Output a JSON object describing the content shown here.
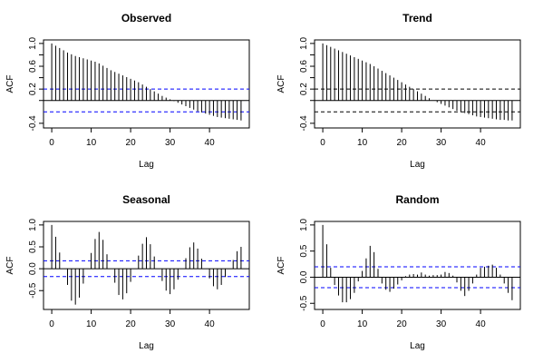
{
  "chart_data": [
    {
      "type": "bar",
      "title": "Observed",
      "xlabel": "Lag",
      "ylabel": "ACF",
      "xlim": [
        0,
        48
      ],
      "ylim": [
        -0.42,
        1.0
      ],
      "xticks": [
        0,
        10,
        20,
        30,
        40
      ],
      "yticks": [
        -0.4,
        0.0,
        0.2,
        0.4,
        0.6,
        0.8,
        1.0
      ],
      "ytick_labels": [
        "-0.4",
        "",
        "0.2",
        "",
        "0.6",
        "",
        "1.0"
      ],
      "ci": 0.2,
      "ci_color": "#0000ff",
      "x": [
        0,
        1,
        2,
        3,
        4,
        5,
        6,
        7,
        8,
        9,
        10,
        11,
        12,
        13,
        14,
        15,
        16,
        17,
        18,
        19,
        20,
        21,
        22,
        23,
        24,
        25,
        26,
        27,
        28,
        29,
        30,
        31,
        32,
        33,
        34,
        35,
        36,
        37,
        38,
        39,
        40,
        41,
        42,
        43,
        44,
        45,
        46,
        47,
        48
      ],
      "values": [
        1.0,
        0.96,
        0.92,
        0.88,
        0.84,
        0.81,
        0.78,
        0.76,
        0.74,
        0.72,
        0.7,
        0.68,
        0.65,
        0.61,
        0.57,
        0.53,
        0.5,
        0.47,
        0.44,
        0.41,
        0.38,
        0.35,
        0.32,
        0.28,
        0.24,
        0.2,
        0.16,
        0.12,
        0.08,
        0.05,
        0.02,
        -0.01,
        -0.04,
        -0.07,
        -0.1,
        -0.13,
        -0.16,
        -0.19,
        -0.21,
        -0.23,
        -0.25,
        -0.27,
        -0.29,
        -0.3,
        -0.31,
        -0.32,
        -0.33,
        -0.34,
        -0.35
      ]
    },
    {
      "type": "bar",
      "title": "Trend",
      "xlabel": "Lag",
      "ylabel": "ACF",
      "xlim": [
        0,
        48
      ],
      "ylim": [
        -0.42,
        1.0
      ],
      "xticks": [
        0,
        10,
        20,
        30,
        40
      ],
      "yticks": [
        -0.4,
        0.0,
        0.2,
        0.4,
        0.6,
        0.8,
        1.0
      ],
      "ytick_labels": [
        "-0.4",
        "",
        "0.2",
        "",
        "0.6",
        "",
        "1.0"
      ],
      "ci": 0.2,
      "ci_color": "#000000",
      "x": [
        0,
        1,
        2,
        3,
        4,
        5,
        6,
        7,
        8,
        9,
        10,
        11,
        12,
        13,
        14,
        15,
        16,
        17,
        18,
        19,
        20,
        21,
        22,
        23,
        24,
        25,
        26,
        27,
        28,
        29,
        30,
        31,
        32,
        33,
        34,
        35,
        36,
        37,
        38,
        39,
        40,
        41,
        42,
        43,
        44,
        45,
        46,
        47,
        48
      ],
      "values": [
        1.0,
        0.97,
        0.94,
        0.91,
        0.88,
        0.85,
        0.82,
        0.79,
        0.76,
        0.73,
        0.7,
        0.67,
        0.64,
        0.6,
        0.56,
        0.52,
        0.48,
        0.44,
        0.4,
        0.36,
        0.32,
        0.28,
        0.24,
        0.2,
        0.16,
        0.12,
        0.08,
        0.04,
        0.0,
        -0.03,
        -0.06,
        -0.09,
        -0.12,
        -0.15,
        -0.18,
        -0.2,
        -0.22,
        -0.24,
        -0.26,
        -0.28,
        -0.29,
        -0.3,
        -0.31,
        -0.32,
        -0.33,
        -0.34,
        -0.34,
        -0.35,
        -0.35
      ]
    },
    {
      "type": "bar",
      "title": "Seasonal",
      "xlabel": "Lag",
      "ylabel": "ACF",
      "xlim": [
        0,
        48
      ],
      "ylim": [
        -0.85,
        1.0
      ],
      "xticks": [
        0,
        10,
        20,
        30,
        40
      ],
      "yticks": [
        -0.5,
        0.0,
        0.5,
        1.0
      ],
      "ytick_labels": [
        "-0.5",
        "0.0",
        "0.5",
        "1.0"
      ],
      "ci": 0.18,
      "ci_color": "#0000ff",
      "x": [
        0,
        1,
        2,
        3,
        4,
        5,
        6,
        7,
        8,
        9,
        10,
        11,
        12,
        13,
        14,
        15,
        16,
        17,
        18,
        19,
        20,
        21,
        22,
        23,
        24,
        25,
        26,
        27,
        28,
        29,
        30,
        31,
        32,
        33,
        34,
        35,
        36,
        37,
        38,
        39,
        40,
        41,
        42,
        43,
        44,
        45,
        46,
        47,
        48
      ],
      "values": [
        1.0,
        0.73,
        0.37,
        0.0,
        -0.37,
        -0.73,
        -0.82,
        -0.66,
        -0.34,
        0.0,
        0.36,
        0.68,
        0.84,
        0.66,
        0.33,
        0.0,
        -0.32,
        -0.6,
        -0.7,
        -0.56,
        -0.3,
        0.0,
        0.3,
        0.57,
        0.72,
        0.56,
        0.28,
        0.0,
        -0.28,
        -0.5,
        -0.58,
        -0.47,
        -0.25,
        0.0,
        0.24,
        0.49,
        0.6,
        0.46,
        0.23,
        0.0,
        -0.22,
        -0.4,
        -0.47,
        -0.37,
        -0.19,
        0.0,
        0.2,
        0.4,
        0.5
      ]
    },
    {
      "type": "bar",
      "title": "Random",
      "xlabel": "Lag",
      "ylabel": "ACF",
      "xlim": [
        0,
        48
      ],
      "ylim": [
        -0.55,
        1.0
      ],
      "xticks": [
        0,
        10,
        20,
        30,
        40
      ],
      "yticks": [
        -0.5,
        0.0,
        0.5,
        1.0
      ],
      "ytick_labels": [
        "-0.5",
        "0.0",
        "0.5",
        "1.0"
      ],
      "ci": 0.2,
      "ci_color": "#0000ff",
      "x": [
        0,
        1,
        2,
        3,
        4,
        5,
        6,
        7,
        8,
        9,
        10,
        11,
        12,
        13,
        14,
        15,
        16,
        17,
        18,
        19,
        20,
        21,
        22,
        23,
        24,
        25,
        26,
        27,
        28,
        29,
        30,
        31,
        32,
        33,
        34,
        35,
        36,
        37,
        38,
        39,
        40,
        41,
        42,
        43,
        44,
        45,
        46,
        47,
        48
      ],
      "values": [
        1.0,
        0.63,
        0.18,
        -0.15,
        -0.35,
        -0.48,
        -0.48,
        -0.42,
        -0.3,
        -0.08,
        0.12,
        0.36,
        0.6,
        0.48,
        0.16,
        -0.12,
        -0.24,
        -0.28,
        -0.22,
        -0.14,
        -0.06,
        0.02,
        0.05,
        0.06,
        0.05,
        0.09,
        0.05,
        0.03,
        0.04,
        0.04,
        0.05,
        0.1,
        0.08,
        0.03,
        -0.1,
        -0.26,
        -0.36,
        -0.26,
        -0.12,
        0.05,
        0.18,
        0.2,
        0.22,
        0.24,
        0.18,
        0.05,
        -0.12,
        -0.3,
        -0.44
      ]
    }
  ]
}
